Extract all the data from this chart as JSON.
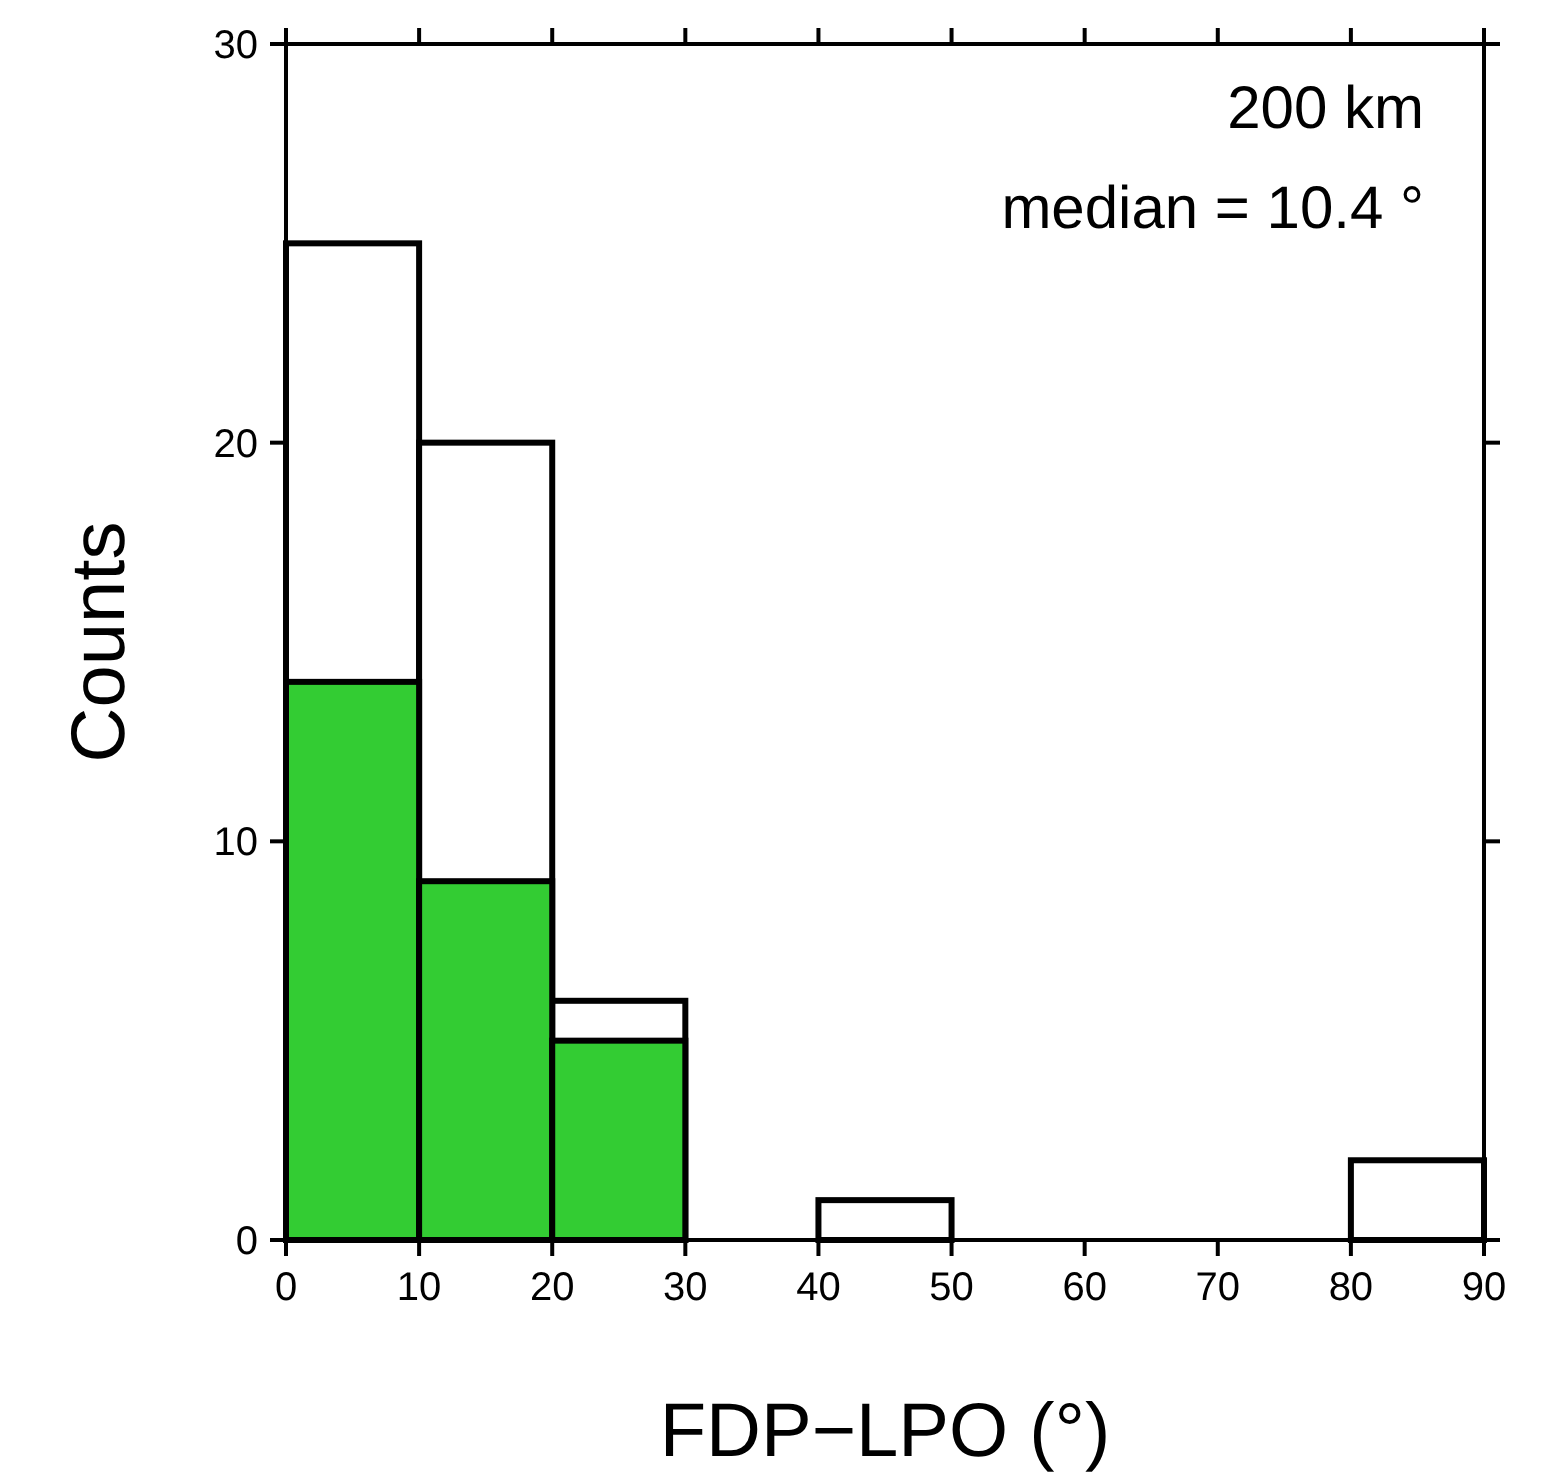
{
  "chart_data": {
    "type": "histogram",
    "xlabel": "FDP−LPO (°)",
    "ylabel": "Counts",
    "bins": [
      0,
      10,
      20,
      30,
      40,
      50,
      60,
      70,
      80,
      90
    ],
    "series": [
      {
        "color": "#ffffff",
        "values": [
          25,
          20,
          6,
          0,
          1,
          0,
          0,
          0,
          2
        ]
      },
      {
        "color": "#33cc33",
        "values": [
          14,
          9,
          5,
          0,
          0,
          0,
          0,
          0,
          0
        ]
      }
    ],
    "xlim": [
      0,
      90
    ],
    "xticks": [
      0,
      10,
      20,
      30,
      40,
      50,
      60,
      70,
      80,
      90
    ],
    "ylim": [
      0,
      30
    ],
    "yticks": [
      0,
      10,
      20,
      30
    ],
    "annotations": [
      "200 km",
      "median = 10.4 °"
    ]
  }
}
